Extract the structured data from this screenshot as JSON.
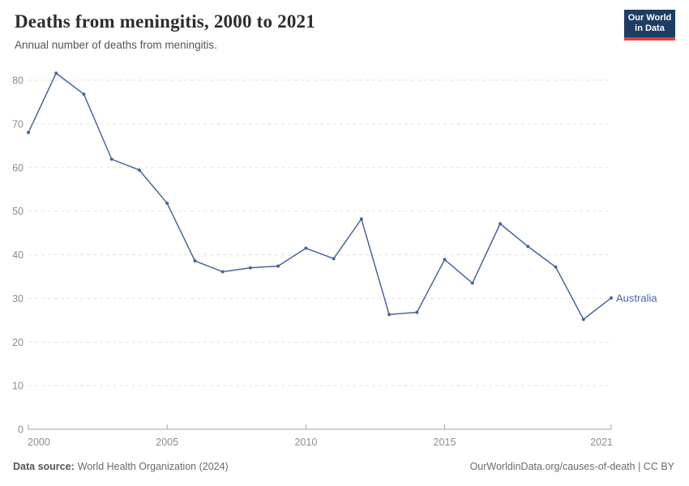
{
  "header": {
    "title": "Deaths from meningitis, 2000 to 2021",
    "subtitle": "Annual number of deaths from meningitis.",
    "logo": {
      "line1": "Our World",
      "line2": "in Data"
    }
  },
  "chart_data": {
    "type": "line",
    "title": "Deaths from meningitis, 2000 to 2021",
    "xlabel": "",
    "ylabel": "",
    "x": [
      2000,
      2001,
      2002,
      2003,
      2004,
      2005,
      2006,
      2007,
      2008,
      2009,
      2010,
      2011,
      2012,
      2013,
      2014,
      2015,
      2016,
      2017,
      2018,
      2019,
      2020,
      2021
    ],
    "series": [
      {
        "name": "Australia",
        "color": "#48659E",
        "values": [
          68,
          81.6,
          76.8,
          61.9,
          59.4,
          51.8,
          38.6,
          36.1,
          37,
          37.4,
          41.5,
          39.1,
          48.2,
          26.3,
          26.8,
          38.9,
          33.5,
          47.1,
          41.9,
          37.2,
          25.2,
          30.1
        ]
      }
    ],
    "xlim": [
      2000,
      2021
    ],
    "ylim": [
      0,
      80
    ],
    "x_ticks": [
      2000,
      2005,
      2010,
      2015,
      2021
    ],
    "y_ticks": [
      0,
      10,
      20,
      30,
      40,
      50,
      60,
      70,
      80
    ],
    "grid": "horizontal-dashed",
    "legend_position": "end-of-line-label",
    "colors": {
      "gridline": "#e2e2e2",
      "axis": "#a3a3a3",
      "tick_label": "#8c8c8c"
    }
  },
  "footer": {
    "datasource_label": "Data source:",
    "datasource": "World Health Organization (2024)",
    "credit": "OurWorldinData.org/causes-of-death | CC BY"
  }
}
